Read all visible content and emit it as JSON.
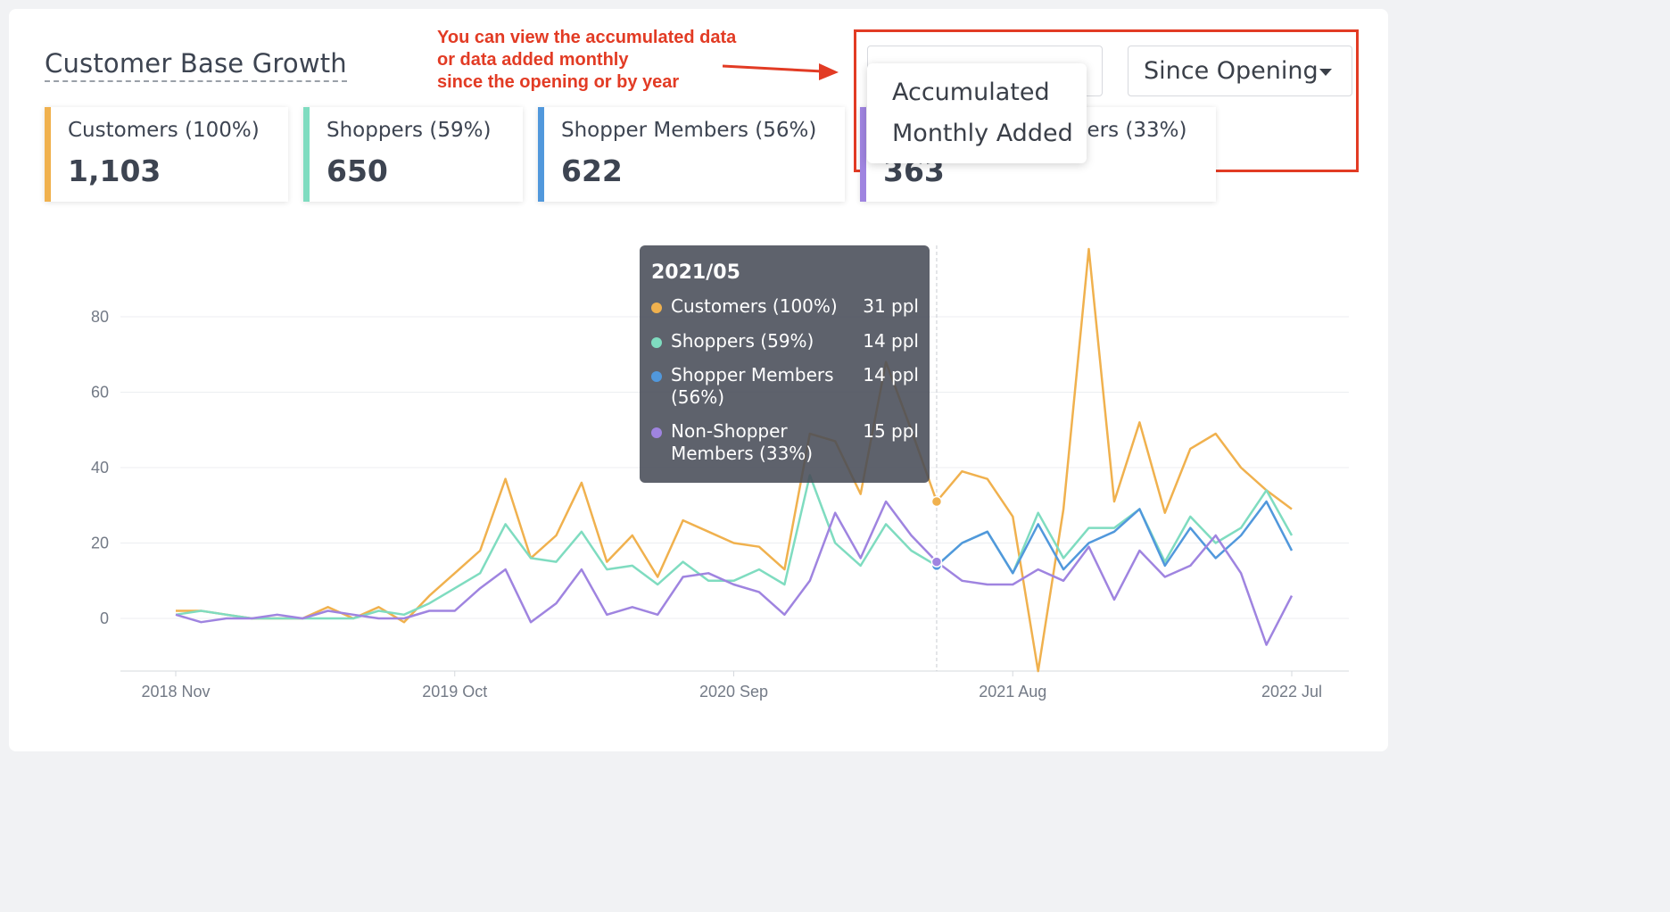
{
  "page": {
    "title": "Customer Base Growth",
    "annotation": [
      "You can view the accumulated data",
      "or data added monthly",
      "since the opening or by year"
    ]
  },
  "controls": {
    "mode_select": {
      "selected": "",
      "options": [
        "Accumulated",
        "Monthly Added"
      ]
    },
    "range_select": {
      "selected": "Since Opening"
    }
  },
  "stats": [
    {
      "label": "Customers (100%)",
      "value": "1,103",
      "color": "#f0b14e"
    },
    {
      "label": "Shoppers (59%)",
      "value": "650",
      "color": "#7fdcc0"
    },
    {
      "label": "Shopper Members (56%)",
      "value": "622",
      "color": "#5198dc"
    },
    {
      "label": "Non-Shopper Members (33%)",
      "value": "363",
      "color": "#9f84e0"
    }
  ],
  "tooltip": {
    "date": "2021/05",
    "rows": [
      {
        "name": "Customers (100%)",
        "value": "31 ppl",
        "color": "#f0b14e"
      },
      {
        "name": "Shoppers (59%)",
        "value": "14 ppl",
        "color": "#7fdcc0"
      },
      {
        "name": "Shopper Members (56%)",
        "value": "14 ppl",
        "color": "#5198dc"
      },
      {
        "name": "Non-Shopper Members (33%)",
        "value": "15 ppl",
        "color": "#9f84e0"
      }
    ]
  },
  "chart_data": {
    "type": "line",
    "x_tick_labels": [
      "2018 Nov",
      "2019 Oct",
      "2020 Sep",
      "2021 Aug",
      "2022 Jul"
    ],
    "x_tick_indices": [
      0,
      11,
      22,
      33,
      44
    ],
    "ylim": [
      -14,
      96
    ],
    "y_ticks": [
      0,
      20,
      40,
      60,
      80
    ],
    "grid": true,
    "highlight_index": 30,
    "series": [
      {
        "name": "Customers (100%)",
        "color": "#f0b14e",
        "values": [
          2,
          2,
          1,
          0,
          0,
          0,
          3,
          0,
          3,
          -1,
          6,
          12,
          18,
          37,
          16,
          22,
          36,
          15,
          22,
          11,
          26,
          23,
          20,
          19,
          13,
          49,
          47,
          33,
          68,
          50,
          31,
          39,
          37,
          27,
          -14,
          29,
          98,
          31,
          52,
          28,
          45,
          49,
          40,
          34,
          29
        ]
      },
      {
        "name": "Shoppers (59%)",
        "color": "#7fdcc0",
        "values": [
          1,
          2,
          1,
          0,
          0,
          0,
          0,
          0,
          2,
          1,
          4,
          8,
          12,
          25,
          16,
          15,
          23,
          13,
          14,
          9,
          15,
          10,
          10,
          13,
          9,
          38,
          20,
          14,
          25,
          18,
          14,
          20,
          23,
          12,
          28,
          16,
          24,
          24,
          29,
          15,
          27,
          20,
          24,
          34,
          22
        ]
      },
      {
        "name": "Shopper Members (56%)",
        "color": "#5198dc",
        "values": [
          null,
          null,
          null,
          null,
          null,
          null,
          null,
          null,
          null,
          null,
          null,
          null,
          null,
          null,
          null,
          null,
          null,
          null,
          null,
          null,
          null,
          null,
          null,
          null,
          null,
          null,
          null,
          null,
          null,
          null,
          14,
          20,
          23,
          12,
          25,
          13,
          20,
          23,
          29,
          14,
          24,
          16,
          22,
          31,
          18
        ]
      },
      {
        "name": "Non-Shopper Members (33%)",
        "color": "#9f84e0",
        "values": [
          1,
          -1,
          0,
          0,
          1,
          0,
          2,
          1,
          0,
          0,
          2,
          2,
          8,
          13,
          -1,
          4,
          13,
          1,
          3,
          1,
          11,
          12,
          9,
          7,
          1,
          10,
          28,
          16,
          31,
          22,
          15,
          10,
          9,
          9,
          13,
          10,
          19,
          5,
          18,
          11,
          14,
          22,
          12,
          -7,
          6
        ]
      }
    ]
  }
}
